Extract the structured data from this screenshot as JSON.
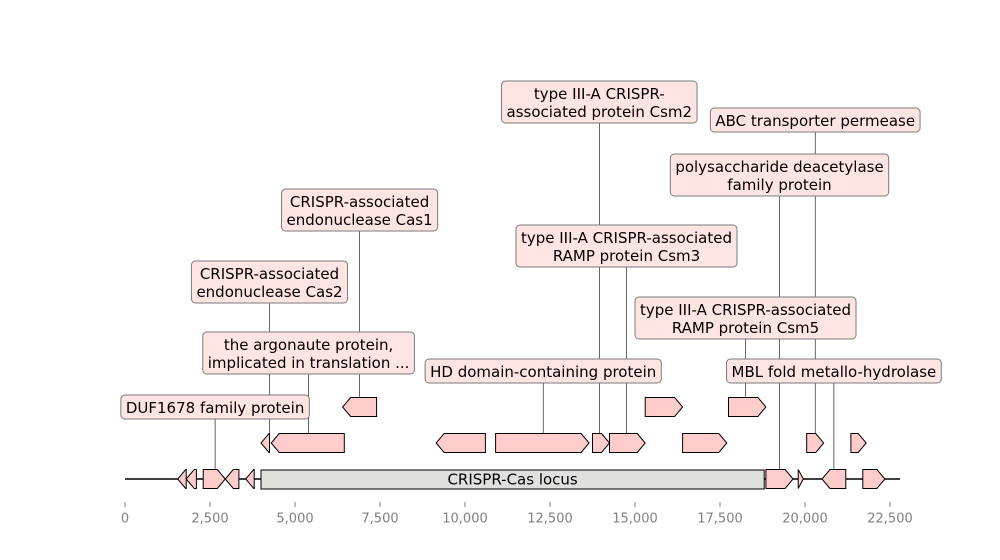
{
  "chart_data": {
    "type": "genome-map",
    "axis": {
      "ticks": [
        0,
        2500,
        5000,
        7500,
        10000,
        12500,
        15000,
        17500,
        20000,
        22500
      ],
      "tick_labels": [
        "0",
        "2,500",
        "5,000",
        "7,500",
        "10,000",
        "12,500",
        "15,000",
        "17,500",
        "20,000",
        "22,500"
      ],
      "range": [
        0,
        22800
      ]
    },
    "locus": {
      "label": "CRISPR-Cas locus",
      "start": 4000,
      "end": 18800
    },
    "features": [
      {
        "start": 1550,
        "end": 1800,
        "strand": -1,
        "level": 0
      },
      {
        "start": 1800,
        "end": 2100,
        "strand": -1,
        "level": 0
      },
      {
        "start": 2300,
        "end": 2950,
        "strand": 1,
        "level": 0
      },
      {
        "start": 2950,
        "end": 3350,
        "strand": -1,
        "level": 0
      },
      {
        "start": 3550,
        "end": 3800,
        "strand": -1,
        "level": 0
      },
      {
        "start": 18850,
        "end": 19650,
        "strand": 1,
        "level": 0
      },
      {
        "start": 19800,
        "end": 19950,
        "strand": 1,
        "level": 0
      },
      {
        "start": 20500,
        "end": 21200,
        "strand": -1,
        "level": 0
      },
      {
        "start": 21700,
        "end": 22350,
        "strand": 1,
        "level": 0
      },
      {
        "start": 4000,
        "end": 4250,
        "strand": -1,
        "level": 1
      },
      {
        "start": 4300,
        "end": 6450,
        "strand": -1,
        "level": 1
      },
      {
        "start": 9150,
        "end": 10600,
        "strand": -1,
        "level": 1
      },
      {
        "start": 10900,
        "end": 13650,
        "strand": 1,
        "level": 1
      },
      {
        "start": 13750,
        "end": 14250,
        "strand": 1,
        "level": 1
      },
      {
        "start": 14250,
        "end": 15300,
        "strand": 1,
        "level": 1
      },
      {
        "start": 16400,
        "end": 17700,
        "strand": 1,
        "level": 1
      },
      {
        "start": 20050,
        "end": 20550,
        "strand": 1,
        "level": 1
      },
      {
        "start": 21350,
        "end": 21800,
        "strand": 1,
        "level": 1
      },
      {
        "start": 6400,
        "end": 7400,
        "strand": -1,
        "level": 2
      },
      {
        "start": 15300,
        "end": 16400,
        "strand": 1,
        "level": 2
      },
      {
        "start": 17750,
        "end": 18850,
        "strand": 1,
        "level": 2
      }
    ],
    "labels": [
      {
        "text": [
          "DUF1678 family protein"
        ],
        "anchor": 2650,
        "feature_level": 0,
        "label_level": 0
      },
      {
        "text": [
          "the argonaute protein,",
          "implicated in translation ..."
        ],
        "anchor": 5400,
        "feature_level": 1,
        "label_level": 1
      },
      {
        "text": [
          "CRISPR-associated",
          "endonuclease Cas2"
        ],
        "anchor": 4250,
        "feature_level": 1,
        "label_level": 2
      },
      {
        "text": [
          "CRISPR-associated",
          "endonuclease Cas1"
        ],
        "anchor": 6900,
        "feature_level": 2,
        "label_level": 3
      },
      {
        "text": [
          "HD domain-containing protein"
        ],
        "anchor": 12300,
        "feature_level": 1,
        "label_level": 4
      },
      {
        "text": [
          "type III-A CRISPR-associated",
          "RAMP protein Csm3"
        ],
        "anchor": 14750,
        "feature_level": 1,
        "label_level": 5
      },
      {
        "text": [
          "type III-A CRISPR-",
          "associated protein Csm2"
        ],
        "anchor": 13950,
        "feature_level": 1,
        "label_level": 6
      },
      {
        "text": [
          "type III-A CRISPR-associated",
          "RAMP protein Csm5"
        ],
        "anchor": 18250,
        "feature_level": 2,
        "label_level": 7
      },
      {
        "text": [
          "MBL fold metallo-hydrolase"
        ],
        "anchor": 20850,
        "feature_level": 0,
        "label_level": 8
      },
      {
        "text": [
          "polysaccharide deacetylase",
          "family protein"
        ],
        "anchor": 19250,
        "feature_level": 0,
        "label_level": 9
      },
      {
        "text": [
          "ABC transporter permease"
        ],
        "anchor": 20300,
        "feature_level": 1,
        "label_level": 10
      }
    ],
    "colors": {
      "feature_fill": "#ffcccc",
      "feature_stroke": "#000000",
      "locus_fill": "#e0e0dc",
      "label_box_fill": "#ffe4e4",
      "label_box_stroke": "#7a7a7a",
      "connector": "#000000",
      "tick_text": "#808080"
    }
  }
}
